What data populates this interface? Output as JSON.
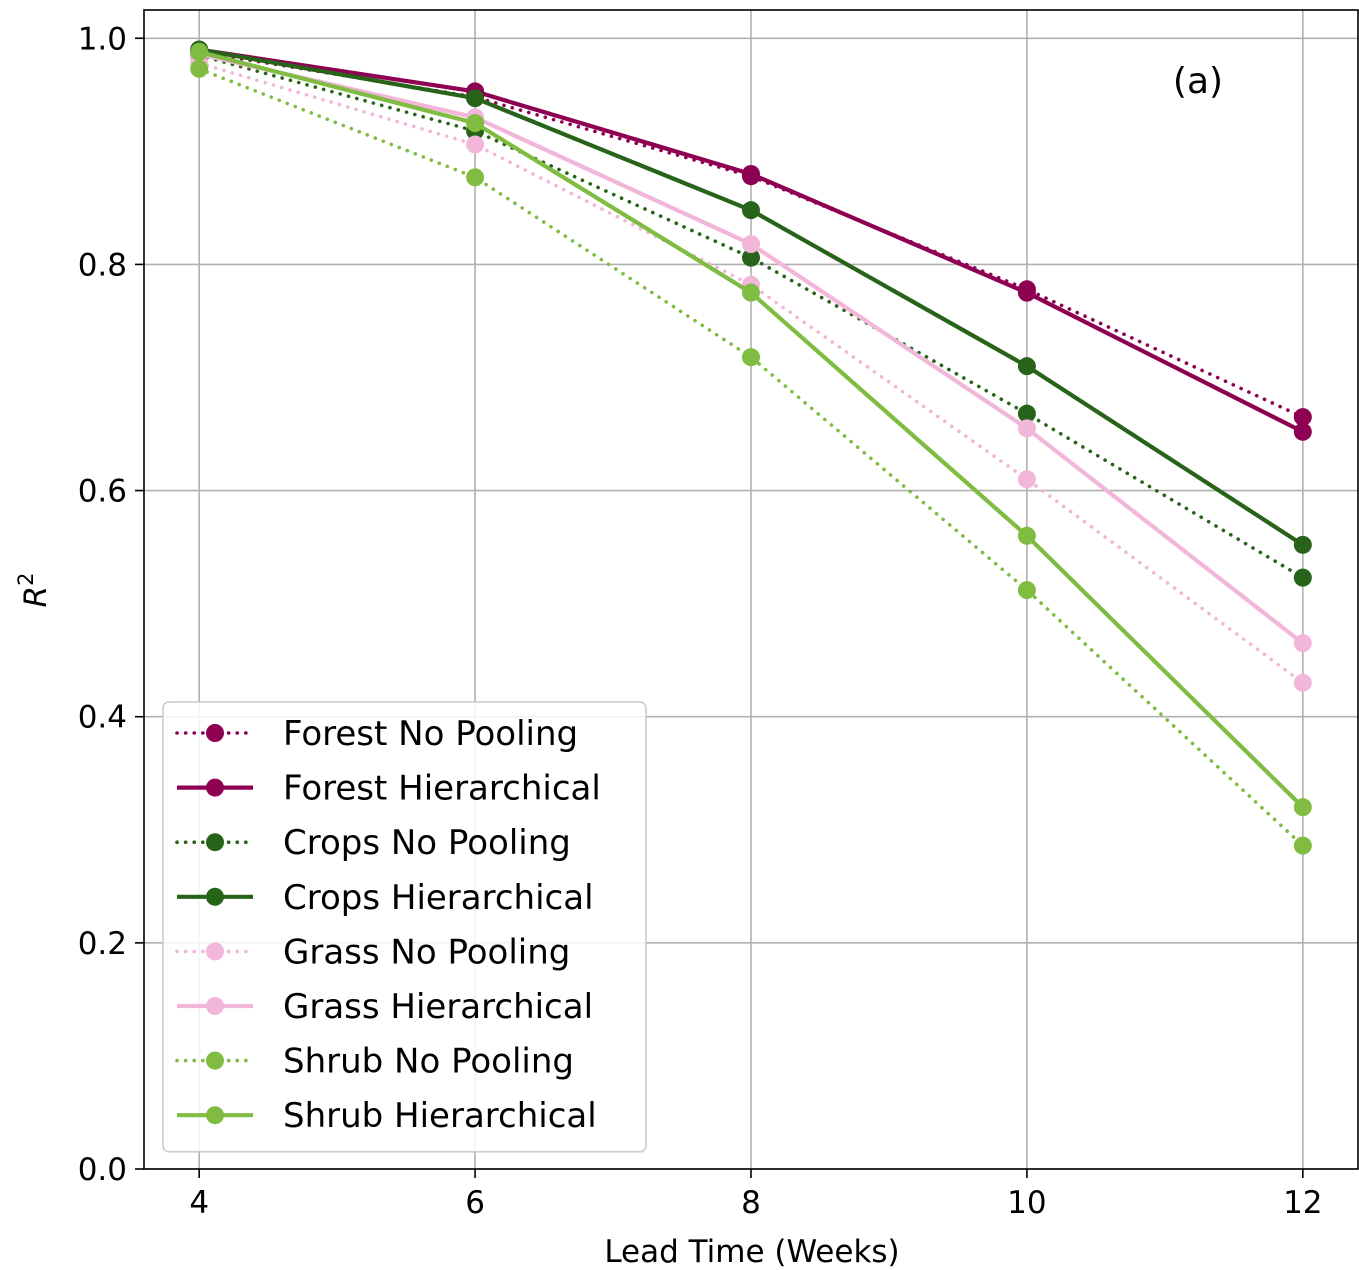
{
  "chart_data": {
    "type": "line",
    "xlabel": "Lead Time (Weeks)",
    "ylabel_base": "R",
    "ylabel_sup": "2",
    "annotation": "(a)",
    "xlim": [
      3.6,
      12.4
    ],
    "ylim": [
      0.0,
      1.025
    ],
    "xticks": [
      "4",
      "6",
      "8",
      "10",
      "12"
    ],
    "yticks": [
      "0.0",
      "0.2",
      "0.4",
      "0.6",
      "0.8",
      "1.0"
    ],
    "grid": true,
    "legend_position": "lower-left",
    "x": [
      4,
      6,
      8,
      10,
      12
    ],
    "series": [
      {
        "name": "Forest No Pooling",
        "style": "dotted",
        "color": "#8e0152",
        "values": [
          0.988,
          0.948,
          0.878,
          0.778,
          0.665
        ]
      },
      {
        "name": "Forest Hierarchical",
        "style": "solid",
        "color": "#8e0152",
        "values": [
          0.99,
          0.953,
          0.88,
          0.775,
          0.652
        ]
      },
      {
        "name": "Crops No Pooling",
        "style": "dotted",
        "color": "#276419",
        "values": [
          0.985,
          0.918,
          0.806,
          0.668,
          0.523
        ]
      },
      {
        "name": "Crops Hierarchical",
        "style": "solid",
        "color": "#276419",
        "values": [
          0.99,
          0.947,
          0.848,
          0.71,
          0.552
        ]
      },
      {
        "name": "Grass No Pooling",
        "style": "dotted",
        "color": "#f1b6da",
        "values": [
          0.978,
          0.906,
          0.782,
          0.61,
          0.43
        ]
      },
      {
        "name": "Grass Hierarchical",
        "style": "solid",
        "color": "#f1b6da",
        "values": [
          0.986,
          0.93,
          0.818,
          0.655,
          0.465
        ]
      },
      {
        "name": "Shrub No Pooling",
        "style": "dotted",
        "color": "#7fbc41",
        "values": [
          0.973,
          0.877,
          0.718,
          0.512,
          0.286
        ]
      },
      {
        "name": "Shrub Hierarchical",
        "style": "solid",
        "color": "#7fbc41",
        "values": [
          0.988,
          0.925,
          0.775,
          0.56,
          0.32
        ]
      }
    ]
  }
}
